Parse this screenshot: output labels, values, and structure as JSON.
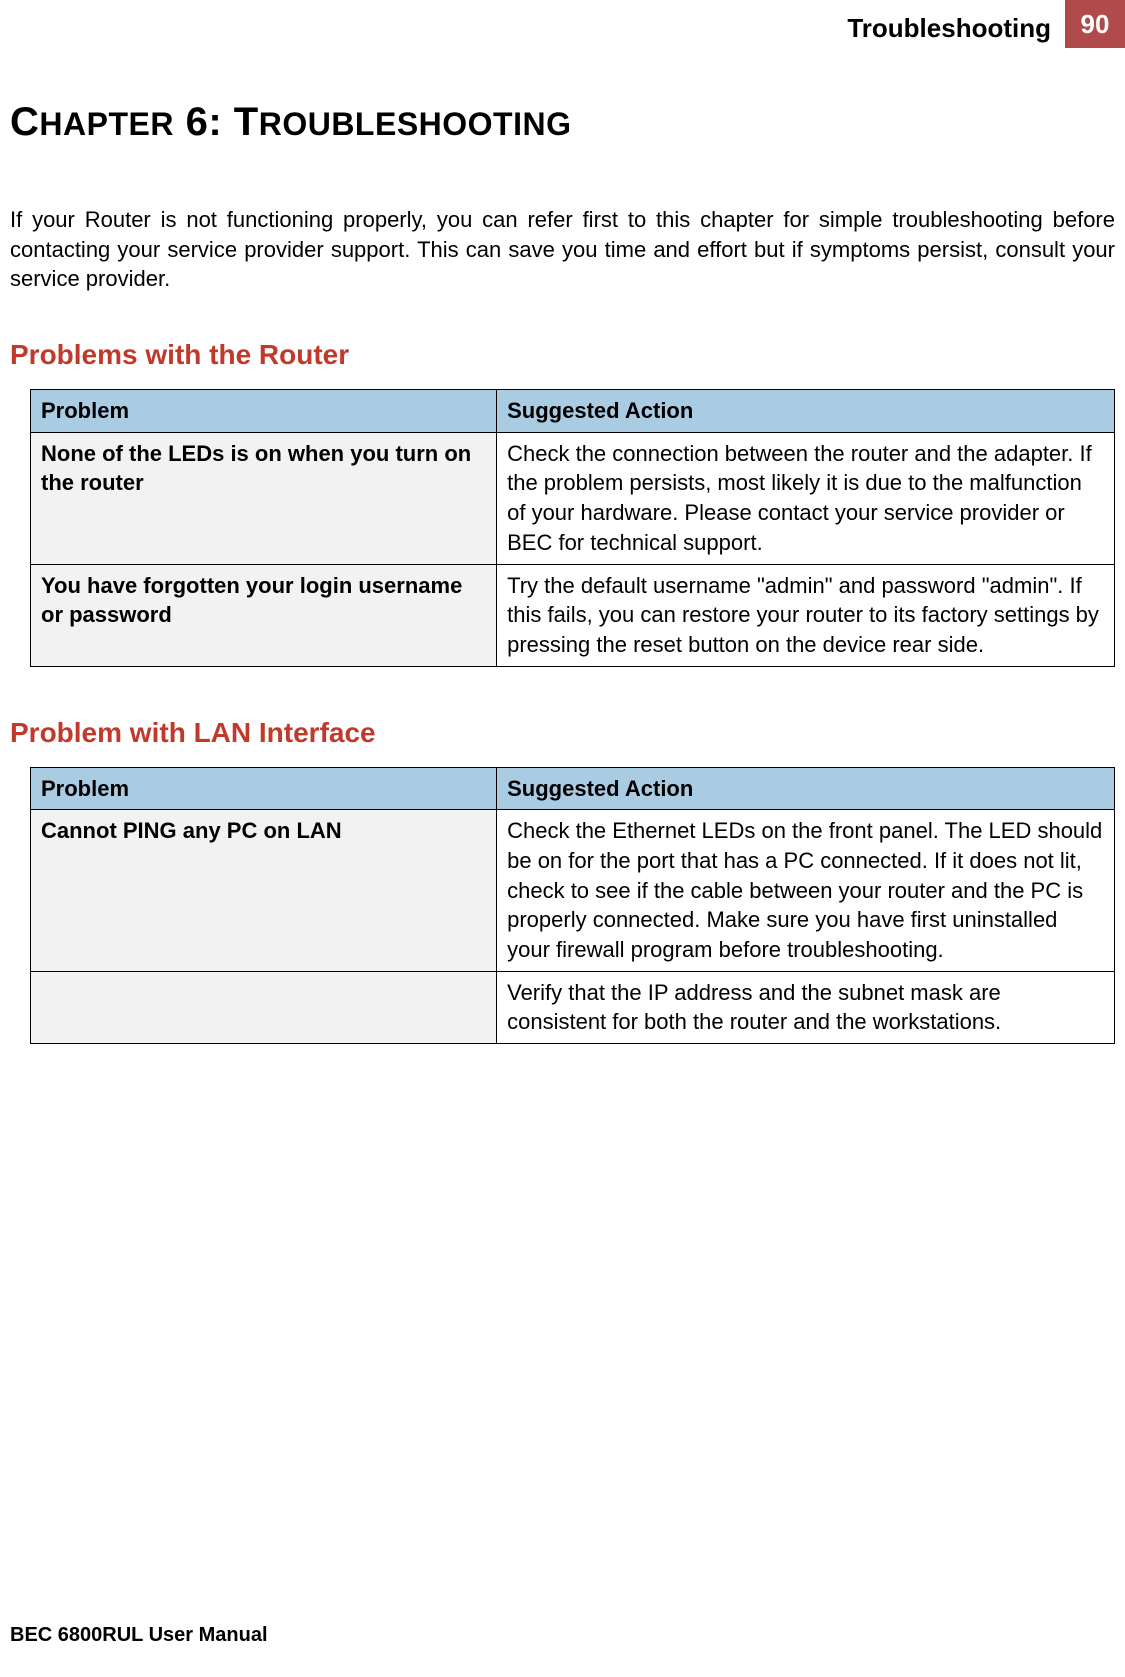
{
  "colors": {
    "header_box_bg": "#b14a4a",
    "header_box_fg": "#ffffff",
    "table_header_bg": "#a9cce3",
    "table_shaded_bg": "#f2f2f2",
    "section_head_color": "#c0392b",
    "border_color": "#000000"
  },
  "header": {
    "title": "Troubleshooting",
    "page_number": "90"
  },
  "chapter_title": "CHAPTER 6: TROUBLESHOOTING",
  "intro": "If your Router is not functioning properly, you can refer first to this chapter for simple troubleshooting before contacting your service provider support. This can save you time and effort but if symptoms persist, consult your service provider.",
  "sections": [
    {
      "title": "Problems with the Router",
      "columns": [
        "Problem",
        "Suggested Action"
      ],
      "rows": [
        {
          "problem": "None of the LEDs is on when you turn on the router",
          "action": "Check the connection between the router and the adapter. If the problem persists, most likely it is due to the malfunction of your hardware. Please contact your service provider or BEC for technical support."
        },
        {
          "problem": "You have forgotten your login username or password",
          "action": "Try the default username \"admin\" and password \"admin\". If this fails, you can restore your router to its factory settings by pressing the reset button on the device rear side."
        }
      ]
    },
    {
      "title": "Problem with LAN Interface",
      "columns": [
        "Problem",
        "Suggested Action"
      ],
      "rows": [
        {
          "problem": "Cannot PING any PC on LAN",
          "action": "Check the Ethernet LEDs on the front panel.\nThe LED should be on for the port that has a PC connected. If it does not lit, check to see if the cable between your router and the PC is properly connected. Make sure you have first uninstalled your firewall program before troubleshooting."
        },
        {
          "problem": "",
          "action": "Verify that the IP address and the subnet mask are consistent for both the router and the workstations."
        }
      ]
    }
  ],
  "footer": "BEC 6800RUL User Manual"
}
